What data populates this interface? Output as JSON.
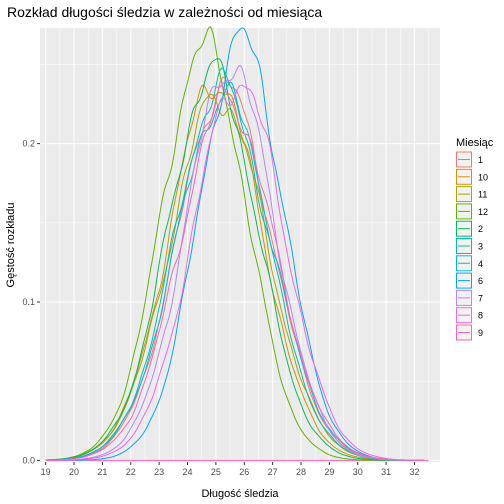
{
  "chart_data": {
    "type": "line",
    "title": "Rozkład długości śledzia w zależności od miesiąca",
    "xlabel": "Długość śledzia",
    "ylabel": "Gęstość rozkładu",
    "xlim": [
      18.8,
      32.9
    ],
    "ylim": [
      -0.001,
      0.273
    ],
    "x_ticks": [
      "19",
      "20",
      "21",
      "22",
      "23",
      "24",
      "25",
      "26",
      "27",
      "28",
      "29",
      "30",
      "31",
      "32"
    ],
    "x_tick_values": [
      19,
      20,
      21,
      22,
      23,
      24,
      25,
      26,
      27,
      28,
      29,
      30,
      31,
      32
    ],
    "y_ticks": [
      "0.0",
      "0.1",
      "0.2"
    ],
    "y_tick_values": [
      0,
      0.1,
      0.2
    ],
    "grid": true,
    "background": "#ebebeb",
    "legend_position": "right",
    "legend_title": "Miesiąc",
    "series": [
      {
        "name": "1",
        "color": "#F8766D",
        "peak_x": 25.3,
        "peak_y": 0.236,
        "sd": 1.65,
        "seed": 1
      },
      {
        "name": "10",
        "color": "#DB8E00",
        "peak_x": 25.0,
        "peak_y": 0.24,
        "sd": 1.62,
        "seed": 2
      },
      {
        "name": "11",
        "color": "#AEA200",
        "peak_x": 25.1,
        "peak_y": 0.23,
        "sd": 1.68,
        "seed": 3
      },
      {
        "name": "12",
        "color": "#64B200",
        "peak_x": 24.6,
        "peak_y": 0.262,
        "sd": 1.5,
        "seed": 4
      },
      {
        "name": "2",
        "color": "#00BD5C",
        "peak_x": 24.9,
        "peak_y": 0.245,
        "sd": 1.58,
        "seed": 5
      },
      {
        "name": "3",
        "color": "#00C1A7",
        "peak_x": 25.2,
        "peak_y": 0.236,
        "sd": 1.64,
        "seed": 6
      },
      {
        "name": "4",
        "color": "#00BADE",
        "peak_x": 25.3,
        "peak_y": 0.23,
        "sd": 1.68,
        "seed": 7
      },
      {
        "name": "6",
        "color": "#00A6FF",
        "peak_x": 25.9,
        "peak_y": 0.266,
        "sd": 1.48,
        "seed": 8
      },
      {
        "name": "7",
        "color": "#B385FF",
        "peak_x": 25.5,
        "peak_y": 0.25,
        "sd": 1.55,
        "seed": 9
      },
      {
        "name": "8",
        "color": "#EF67EB",
        "peak_x": 25.8,
        "peak_y": 0.24,
        "sd": 1.6,
        "seed": 10
      },
      {
        "name": "9",
        "color": "#FF63B6",
        "peak_x": 25.4,
        "peak_y": 0.228,
        "sd": 1.66,
        "seed": 11
      }
    ],
    "baseline_series": {
      "color": "#FF63B6",
      "x_range": [
        19,
        32.5
      ],
      "y": 0
    }
  }
}
